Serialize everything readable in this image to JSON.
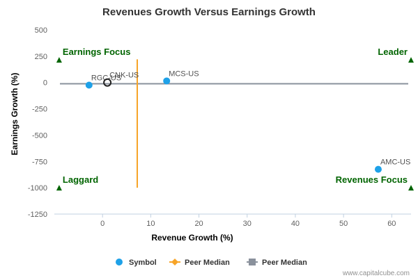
{
  "chart_data": {
    "type": "scatter",
    "title": "Revenues Growth Versus Earnings Growth",
    "xlabel": "Revenue Growth (%)",
    "ylabel": "Earnings Growth (%)",
    "xlim": [
      -10,
      64
    ],
    "ylim": [
      -1250,
      500
    ],
    "xticks": [
      0,
      10,
      20,
      30,
      40,
      50,
      60
    ],
    "yticks": [
      500,
      250,
      0,
      -250,
      -500,
      -750,
      -1000,
      -1250
    ],
    "series": [
      {
        "name": "Symbol",
        "color": "#1ea1e8",
        "points": [
          {
            "label": "RGC-US",
            "x": -2.8,
            "y": -25
          },
          {
            "label": "MCS-US",
            "x": 13.3,
            "y": 15
          },
          {
            "label": "AMC-US",
            "x": 57.2,
            "y": -825
          }
        ]
      }
    ],
    "highlight": {
      "label": "CNK-US",
      "x": 1.0,
      "y": 0
    },
    "peer_median_x": 7.2,
    "peer_median_y": -12,
    "vertical_range": [
      -1000,
      220
    ],
    "quadrants": [
      {
        "label": "Earnings Focus",
        "position": "top-left",
        "marker_x": -9,
        "marker_y": 215
      },
      {
        "label": "Leader",
        "position": "top-right",
        "marker_x": 64,
        "marker_y": 215
      },
      {
        "label": "Laggard",
        "position": "bottom-left",
        "marker_x": -9,
        "marker_y": -1000
      },
      {
        "label": "Revenues Focus",
        "position": "bottom-right",
        "marker_x": 64,
        "marker_y": -1000
      }
    ],
    "legend": {
      "position": "bottom-center",
      "items": [
        {
          "label": "Symbol",
          "color": "#1ea1e8",
          "icon": "circle-icon"
        },
        {
          "label": "Peer Median",
          "color": "#f7a427",
          "icon": "diamond-line-icon"
        },
        {
          "label": "Peer Median",
          "color": "#8a919c",
          "icon": "square-line-icon"
        }
      ]
    },
    "grid": false,
    "credit": "www.capitalcube.com"
  }
}
